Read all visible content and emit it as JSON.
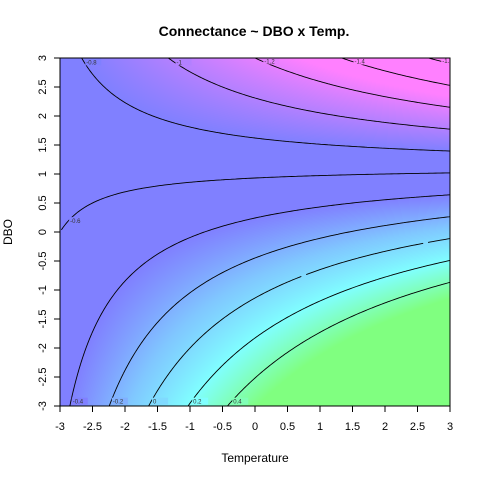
{
  "chart_data": {
    "type": "heatmap",
    "title": "Connectance  ~  DBO x Temp.",
    "xlabel": "Temperature",
    "ylabel": "DBO",
    "xlim": [
      -3,
      3
    ],
    "ylim": [
      -3,
      3
    ],
    "x_ticks": [
      "-3",
      "-2.5",
      "-2",
      "-1.5",
      "-1",
      "-0.5",
      "0",
      "0.5",
      "1",
      "1.5",
      "2",
      "2.5",
      "3"
    ],
    "y_ticks": [
      "-3",
      "-2.5",
      "-2",
      "-1.5",
      "-1",
      "-0.5",
      "0",
      "0.5",
      "1",
      "1.5",
      "2",
      "2.5",
      "3"
    ],
    "contour_levels": [
      -2,
      -1.8,
      -1.6,
      -1.4,
      -1.2,
      -1,
      -0.8,
      -0.6,
      -0.4,
      -0.2,
      0,
      0.2,
      0.4
    ],
    "contour_labels": [
      "-2",
      "-1.8",
      "-1.6",
      "-1.4",
      "-1.2",
      "-1",
      "-0.8",
      "-0.6",
      "-0.4",
      "-0.2",
      "0",
      "0.2",
      "0.4"
    ],
    "surface_model": "z = -0.6 - 0.2*DBO - 0.05*Temperature*DBO - 0.03*(Temperature+3)*(DBO-3)",
    "colors": {
      "low": "#ff7f7f",
      "magenta": "#ff80ff",
      "mid": "#8080ff",
      "high_blue": "#80c8ff",
      "cyan": "#80ffff",
      "high": "#80ff80"
    }
  }
}
